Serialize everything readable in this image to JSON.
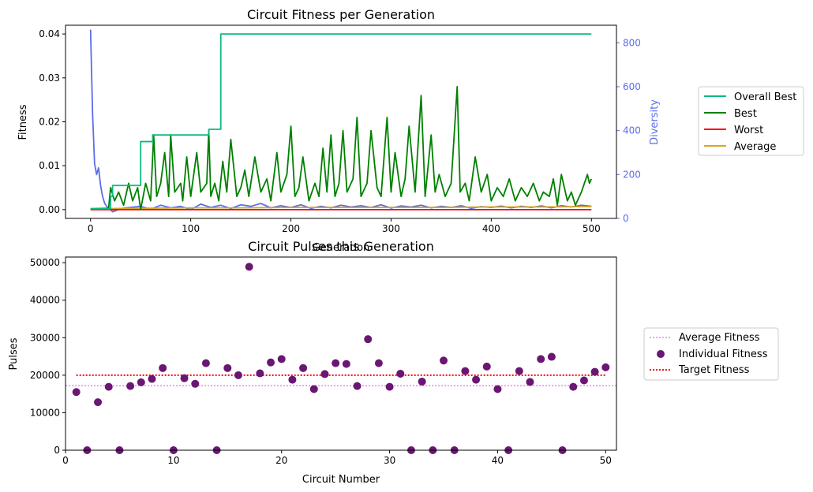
{
  "chart_data": [
    {
      "type": "line",
      "title": "Circuit Fitness per Generation",
      "xlabel": "Generation",
      "ylabel": "Fitness",
      "y2label": "Diversity",
      "xlim": [
        -25,
        525
      ],
      "ylim": [
        -0.002,
        0.042
      ],
      "y2lim": [
        0,
        880
      ],
      "xticks": [
        0,
        100,
        200,
        300,
        400,
        500
      ],
      "yticks": [
        0.0,
        0.01,
        0.02,
        0.03,
        0.04
      ],
      "ytick_labels": [
        "0.00",
        "0.01",
        "0.02",
        "0.03",
        "0.04"
      ],
      "y2ticks": [
        0,
        200,
        400,
        600,
        800
      ],
      "legend": {
        "position": "right-outside",
        "entries": [
          "Overall Best",
          "Best",
          "Worst",
          "Average"
        ]
      },
      "colors": {
        "Overall Best": "#10b981",
        "Best": "#008000",
        "Worst": "#ff0000",
        "Average": "#daa520",
        "Diversity": "#5b6ee8"
      },
      "series": [
        {
          "name": "Overall Best",
          "axis": "left",
          "style": "step",
          "x": [
            0,
            20,
            22,
            35,
            50,
            62,
            118,
            130,
            500
          ],
          "values": [
            0.0002,
            0.003,
            0.0055,
            0.0055,
            0.0155,
            0.017,
            0.0183,
            0.04,
            0.04
          ]
        },
        {
          "name": "Best",
          "axis": "left",
          "x": [
            0,
            18,
            20,
            24,
            28,
            33,
            38,
            42,
            47,
            50,
            55,
            60,
            63,
            66,
            70,
            74,
            78,
            80,
            84,
            90,
            92,
            96,
            100,
            106,
            110,
            116,
            118,
            120,
            124,
            128,
            132,
            136,
            140,
            146,
            150,
            154,
            158,
            164,
            170,
            176,
            180,
            186,
            190,
            196,
            200,
            204,
            208,
            212,
            218,
            224,
            228,
            232,
            236,
            240,
            244,
            248,
            252,
            256,
            262,
            266,
            270,
            276,
            280,
            286,
            290,
            296,
            300,
            304,
            310,
            314,
            318,
            324,
            330,
            334,
            340,
            344,
            348,
            354,
            360,
            366,
            369,
            374,
            378,
            384,
            390,
            396,
            400,
            406,
            412,
            418,
            424,
            430,
            436,
            442,
            448,
            452,
            458,
            462,
            466,
            470,
            476,
            480,
            484,
            490,
            496,
            498,
            500
          ],
          "values": [
            0.0002,
            0.0003,
            0.005,
            0.002,
            0.004,
            0.001,
            0.006,
            0.002,
            0.005,
            0.0,
            0.006,
            0.002,
            0.017,
            0.003,
            0.006,
            0.013,
            0.003,
            0.017,
            0.004,
            0.006,
            0.002,
            0.012,
            0.003,
            0.013,
            0.004,
            0.006,
            0.018,
            0.003,
            0.006,
            0.002,
            0.011,
            0.004,
            0.016,
            0.003,
            0.005,
            0.009,
            0.003,
            0.012,
            0.004,
            0.007,
            0.002,
            0.013,
            0.004,
            0.008,
            0.019,
            0.003,
            0.005,
            0.012,
            0.002,
            0.006,
            0.003,
            0.014,
            0.004,
            0.017,
            0.003,
            0.006,
            0.018,
            0.004,
            0.007,
            0.021,
            0.003,
            0.006,
            0.018,
            0.005,
            0.003,
            0.021,
            0.004,
            0.013,
            0.003,
            0.007,
            0.019,
            0.004,
            0.026,
            0.003,
            0.017,
            0.004,
            0.008,
            0.003,
            0.006,
            0.028,
            0.004,
            0.006,
            0.002,
            0.012,
            0.004,
            0.008,
            0.002,
            0.005,
            0.003,
            0.007,
            0.002,
            0.005,
            0.003,
            0.006,
            0.002,
            0.004,
            0.003,
            0.007,
            0.001,
            0.008,
            0.002,
            0.004,
            0.001,
            0.004,
            0.008,
            0.006,
            0.007
          ]
        },
        {
          "name": "Worst",
          "axis": "left",
          "x": [
            0,
            500
          ],
          "values": [
            0.0,
            0.0
          ]
        },
        {
          "name": "Average",
          "axis": "left",
          "x": [
            0,
            50,
            100,
            150,
            200,
            250,
            300,
            350,
            400,
            450,
            500
          ],
          "values": [
            0.0002,
            0.0003,
            0.0004,
            0.0004,
            0.0005,
            0.0005,
            0.0005,
            0.0005,
            0.0006,
            0.0006,
            0.0007
          ]
        },
        {
          "name": "Diversity",
          "axis": "right",
          "x": [
            0,
            2,
            4,
            6,
            8,
            10,
            12,
            14,
            16,
            18,
            20,
            22,
            25,
            30,
            40,
            50,
            60,
            70,
            80,
            90,
            100,
            110,
            120,
            130,
            140,
            150,
            160,
            170,
            180,
            190,
            200,
            210,
            220,
            230,
            240,
            250,
            260,
            270,
            280,
            290,
            300,
            310,
            320,
            330,
            340,
            350,
            360,
            370,
            380,
            390,
            400,
            410,
            420,
            430,
            440,
            450,
            460,
            470,
            480,
            490,
            500
          ],
          "values": [
            860,
            480,
            250,
            200,
            230,
            150,
            100,
            70,
            55,
            48,
            40,
            30,
            35,
            45,
            50,
            55,
            42,
            60,
            48,
            55,
            40,
            65,
            50,
            60,
            45,
            62,
            55,
            68,
            48,
            58,
            50,
            62,
            46,
            55,
            48,
            60,
            52,
            58,
            50,
            62,
            47,
            57,
            52,
            60,
            48,
            55,
            50,
            58,
            46,
            54,
            50,
            56,
            48,
            55,
            50,
            57,
            48,
            58,
            52,
            60,
            55
          ]
        }
      ]
    },
    {
      "type": "scatter",
      "title": "Circuit Pulses this Generation",
      "xlabel": "Circuit Number",
      "ylabel": "Pulses",
      "xlim": [
        0,
        51
      ],
      "ylim": [
        0,
        51500
      ],
      "xticks": [
        0,
        10,
        20,
        30,
        40,
        50
      ],
      "yticks": [
        0,
        10000,
        20000,
        30000,
        40000,
        50000
      ],
      "legend": {
        "position": "right-outside",
        "entries": [
          "Average Fitness",
          "Individual Fitness",
          "Target Fitness"
        ]
      },
      "colors": {
        "Average Fitness": "#ee82ee",
        "Individual Fitness": "#6a1673",
        "Target Fitness": "#ff0000"
      },
      "average_fitness": 17200,
      "target_fitness": 20000,
      "points": {
        "x": [
          1,
          2,
          3,
          4,
          5,
          6,
          7,
          8,
          9,
          10,
          11,
          12,
          13,
          14,
          15,
          16,
          17,
          18,
          19,
          20,
          21,
          22,
          23,
          24,
          25,
          26,
          27,
          28,
          29,
          30,
          31,
          32,
          33,
          34,
          35,
          36,
          37,
          38,
          39,
          40,
          41,
          42,
          43,
          44,
          45,
          46,
          47,
          48,
          49,
          50
        ],
        "y": [
          15500,
          0,
          12800,
          16900,
          0,
          17100,
          18100,
          19000,
          21900,
          0,
          19200,
          17700,
          23200,
          0,
          21900,
          20000,
          48900,
          20500,
          23400,
          24300,
          18800,
          21900,
          16300,
          20300,
          23200,
          23000,
          17100,
          29600,
          23200,
          16900,
          20400,
          0,
          18300,
          0,
          23900,
          0,
          21100,
          18800,
          22300,
          16300,
          0,
          21100,
          18200,
          24300,
          24900,
          0,
          16900,
          18600,
          20900,
          22100
        ]
      }
    }
  ]
}
